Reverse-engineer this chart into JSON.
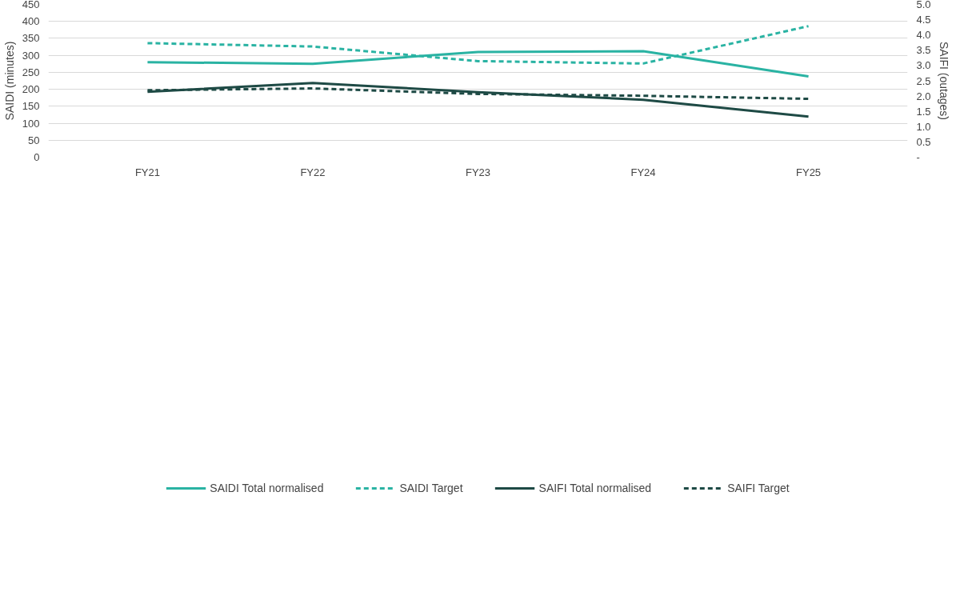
{
  "chart_data": {
    "type": "line",
    "categories": [
      "FY21",
      "FY22",
      "FY23",
      "FY24",
      "FY25"
    ],
    "ylabel": "SAIDI (minutes)",
    "y2label": "SAIFI (outages)",
    "ylim": [
      0,
      450
    ],
    "yticks": [
      0,
      50,
      100,
      150,
      200,
      250,
      300,
      350,
      400,
      450
    ],
    "y2lim": [
      0,
      5
    ],
    "y2ticks": [
      {
        "value": 0,
        "label": "-"
      },
      {
        "value": 0.5,
        "label": "0.5"
      },
      {
        "value": 1,
        "label": "1.0"
      },
      {
        "value": 1.5,
        "label": "1.5"
      },
      {
        "value": 2,
        "label": "2.0"
      },
      {
        "value": 2.5,
        "label": "2.5"
      },
      {
        "value": 3,
        "label": "3.0"
      },
      {
        "value": 3.5,
        "label": "3.5"
      },
      {
        "value": 4,
        "label": "4.0"
      },
      {
        "value": 4.5,
        "label": "4.5"
      },
      {
        "value": 5,
        "label": "5.0"
      }
    ],
    "grid": "y",
    "legend": "bottom",
    "marker": "none",
    "series": [
      {
        "name": "SAIDI Total normalised",
        "color": "#2ab3a3",
        "line_style": "solid",
        "values": [
          280,
          275,
          310,
          312,
          238
        ]
      },
      {
        "name": "SAIDI Target",
        "color": "#2ab3a3",
        "line_style": "dashed",
        "values": [
          336,
          326,
          283,
          276,
          386
        ]
      },
      {
        "name": "SAIFI Total normalised",
        "color": "#1e4a45",
        "line_style": "solid",
        "axis": "y2",
        "values": [
          2.14,
          2.43,
          2.13,
          1.88,
          1.33
        ]
      },
      {
        "name": "SAIFI Target",
        "color": "#1e4a45",
        "line_style": "dashed",
        "axis": "y2",
        "values": [
          2.19,
          2.25,
          2.07,
          2.01,
          1.91
        ]
      }
    ]
  }
}
